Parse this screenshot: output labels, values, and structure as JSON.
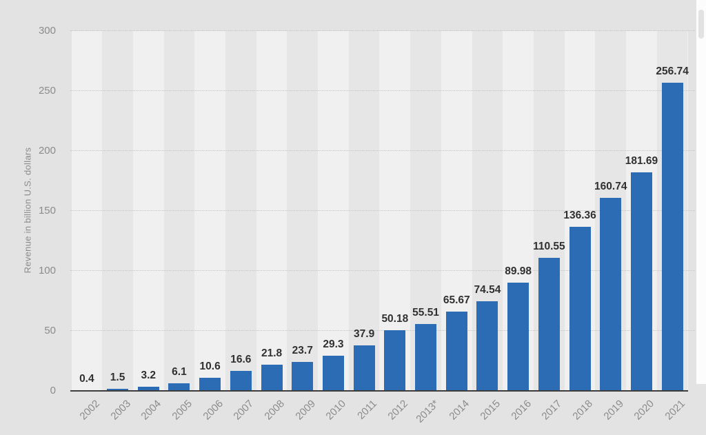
{
  "chart_data": {
    "type": "bar",
    "title": "",
    "xlabel": "",
    "ylabel": "Revenue in billion U.S. dollars",
    "categories": [
      "2002",
      "2003",
      "2004",
      "2005",
      "2006",
      "2007",
      "2008",
      "2009",
      "2010",
      "2011",
      "2012",
      "2013*",
      "2014",
      "2015",
      "2016",
      "2017",
      "2018",
      "2019",
      "2020",
      "2021"
    ],
    "values": [
      0.4,
      1.5,
      3.2,
      6.1,
      10.6,
      16.6,
      21.8,
      23.7,
      29.3,
      37.9,
      50.18,
      55.51,
      65.67,
      74.54,
      89.98,
      110.55,
      136.36,
      160.74,
      181.69,
      256.74
    ],
    "value_labels": [
      "0.4",
      "1.5",
      "3.2",
      "6.1",
      "10.6",
      "16.6",
      "21.8",
      "23.7",
      "29.3",
      "37.9",
      "50.18",
      "55.51",
      "65.67",
      "74.54",
      "89.98",
      "110.55",
      "136.36",
      "160.74",
      "181.69",
      "256.74"
    ],
    "yticks": [
      0,
      50,
      100,
      150,
      200,
      250,
      300
    ],
    "ylim": [
      0,
      300
    ],
    "grid": "horizontal-dotted",
    "legend": null,
    "colors": {
      "bar": "#2c6cb4",
      "value_label": "#303030",
      "axis_text": "#8b8b8b",
      "gridline": "#c3c3c3",
      "baseline": "#3c3c3c",
      "plot_band_light": "#eff0ef",
      "plot_band_dark": "#e5e6e5",
      "background": "#e3e3e3",
      "scrollbar_track": "#fcfcfc",
      "scrollbar_thumb": "#e2e2e2"
    }
  }
}
